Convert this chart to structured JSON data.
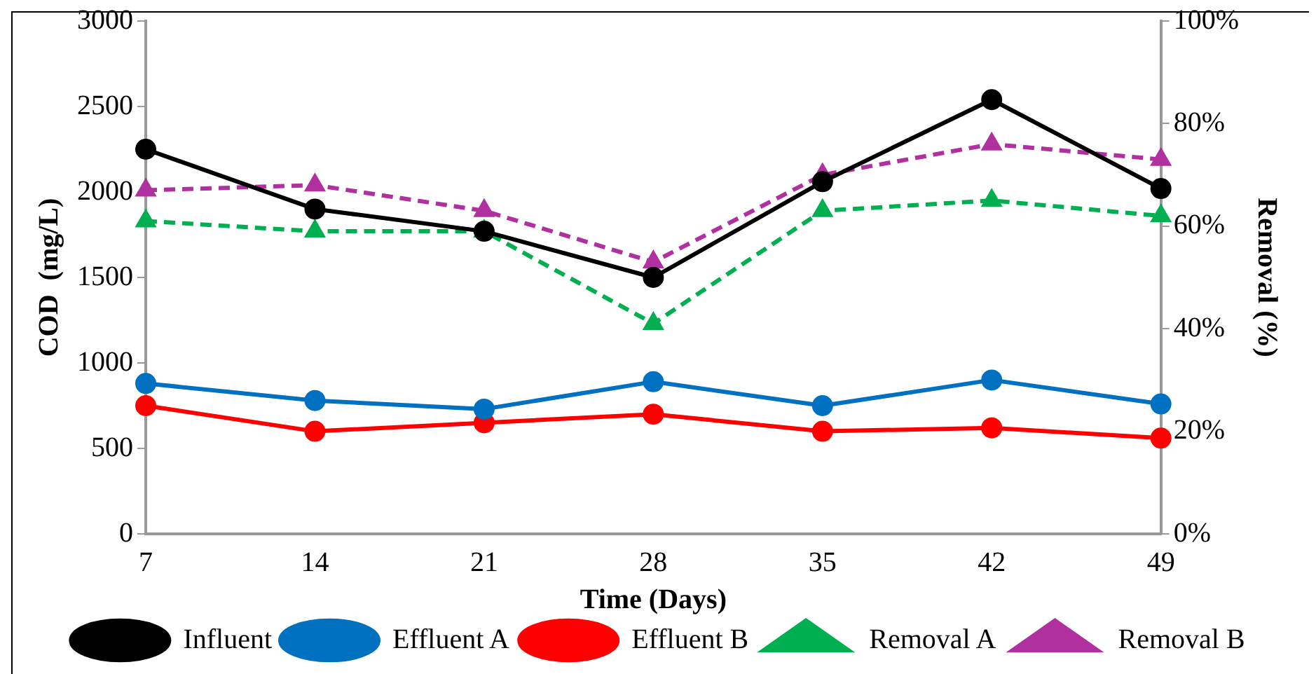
{
  "chart_data": {
    "type": "line",
    "xlabel": "Time (Days)",
    "ylabel": "COD  (mg/L)",
    "y2label": "Removal (%)",
    "categories": [
      "7",
      "14",
      "21",
      "28",
      "35",
      "42",
      "49"
    ],
    "ylim": [
      0,
      3000
    ],
    "yticks": [
      0,
      500,
      1000,
      1500,
      2000,
      2500,
      3000
    ],
    "y2lim": [
      0,
      100
    ],
    "y2ticks": [
      {
        "value": 0,
        "label": "0%"
      },
      {
        "value": 20,
        "label": "20%"
      },
      {
        "value": 40,
        "label": "40%"
      },
      {
        "value": 60,
        "label": "60%"
      },
      {
        "value": 80,
        "label": "80%"
      },
      {
        "value": 100,
        "label": "100%"
      }
    ],
    "grid": false,
    "legend": "bottom",
    "series": [
      {
        "name": "Influent",
        "color": "#000000",
        "marker": "circle",
        "line_style": "solid",
        "values": [
          2250,
          1900,
          1770,
          1500,
          2060,
          2540,
          2020
        ]
      },
      {
        "name": "Effluent A",
        "color": "#0070c0",
        "marker": "circle",
        "line_style": "solid",
        "values": [
          880,
          780,
          730,
          890,
          750,
          900,
          760
        ]
      },
      {
        "name": "Effluent B",
        "color": "#ff0000",
        "marker": "circle",
        "line_style": "solid",
        "values": [
          750,
          600,
          650,
          700,
          600,
          620,
          560
        ]
      },
      {
        "name": "Removal A",
        "color": "#00b050",
        "marker": "triangle",
        "line_style": "dashed",
        "axis": "y2",
        "values": [
          61,
          59,
          59,
          41,
          63,
          65,
          62
        ]
      },
      {
        "name": "Removal B",
        "color": "#b030a0",
        "marker": "triangle",
        "line_style": "dashed",
        "axis": "y2",
        "values": [
          67,
          68,
          63,
          53,
          70,
          76,
          73
        ]
      }
    ]
  }
}
